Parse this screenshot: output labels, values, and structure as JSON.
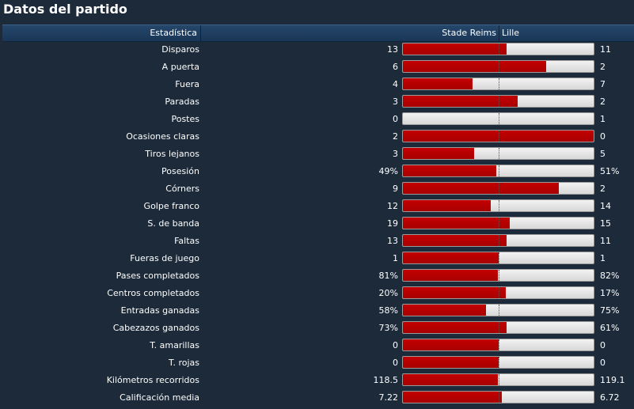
{
  "title": "Datos del partido",
  "header": {
    "stat_label": "Estadística",
    "home_team": "Stade Reims",
    "away_team": "Lille"
  },
  "colors": {
    "home_bar": "#b00000",
    "away_bar": "#e6e6e6",
    "background": "#1c2a3a"
  },
  "stats": [
    {
      "label": "Disparos",
      "home": "13",
      "away": "11",
      "home_share": 0.542
    },
    {
      "label": "A puerta",
      "home": "6",
      "away": "2",
      "home_share": 0.75
    },
    {
      "label": "Fuera",
      "home": "4",
      "away": "7",
      "home_share": 0.364
    },
    {
      "label": "Paradas",
      "home": "3",
      "away": "2",
      "home_share": 0.6
    },
    {
      "label": "Postes",
      "home": "0",
      "away": "1",
      "home_share": 0.0
    },
    {
      "label": "Ocasiones claras",
      "home": "2",
      "away": "0",
      "home_share": 1.0
    },
    {
      "label": "Tiros lejanos",
      "home": "3",
      "away": "5",
      "home_share": 0.375
    },
    {
      "label": "Posesión",
      "home": "49%",
      "away": "51%",
      "home_share": 0.49
    },
    {
      "label": "Córners",
      "home": "9",
      "away": "2",
      "home_share": 0.818
    },
    {
      "label": "Golpe franco",
      "home": "12",
      "away": "14",
      "home_share": 0.462
    },
    {
      "label": "S. de banda",
      "home": "19",
      "away": "15",
      "home_share": 0.559
    },
    {
      "label": "Faltas",
      "home": "13",
      "away": "11",
      "home_share": 0.542
    },
    {
      "label": "Fueras de juego",
      "home": "1",
      "away": "1",
      "home_share": 0.5
    },
    {
      "label": "Pases completados",
      "home": "81%",
      "away": "82%",
      "home_share": 0.497
    },
    {
      "label": "Centros completados",
      "home": "20%",
      "away": "17%",
      "home_share": 0.541
    },
    {
      "label": "Entradas ganadas",
      "home": "58%",
      "away": "75%",
      "home_share": 0.436
    },
    {
      "label": "Cabezazos ganados",
      "home": "73%",
      "away": "61%",
      "home_share": 0.545
    },
    {
      "label": "T. amarillas",
      "home": "0",
      "away": "0",
      "home_share": 0.5
    },
    {
      "label": "T. rojas",
      "home": "0",
      "away": "0",
      "home_share": 0.5
    },
    {
      "label": "Kilómetros recorridos",
      "home": "118.5",
      "away": "119.1",
      "home_share": 0.499
    },
    {
      "label": "Calificación media",
      "home": "7.22",
      "away": "6.72",
      "home_share": 0.518
    }
  ]
}
